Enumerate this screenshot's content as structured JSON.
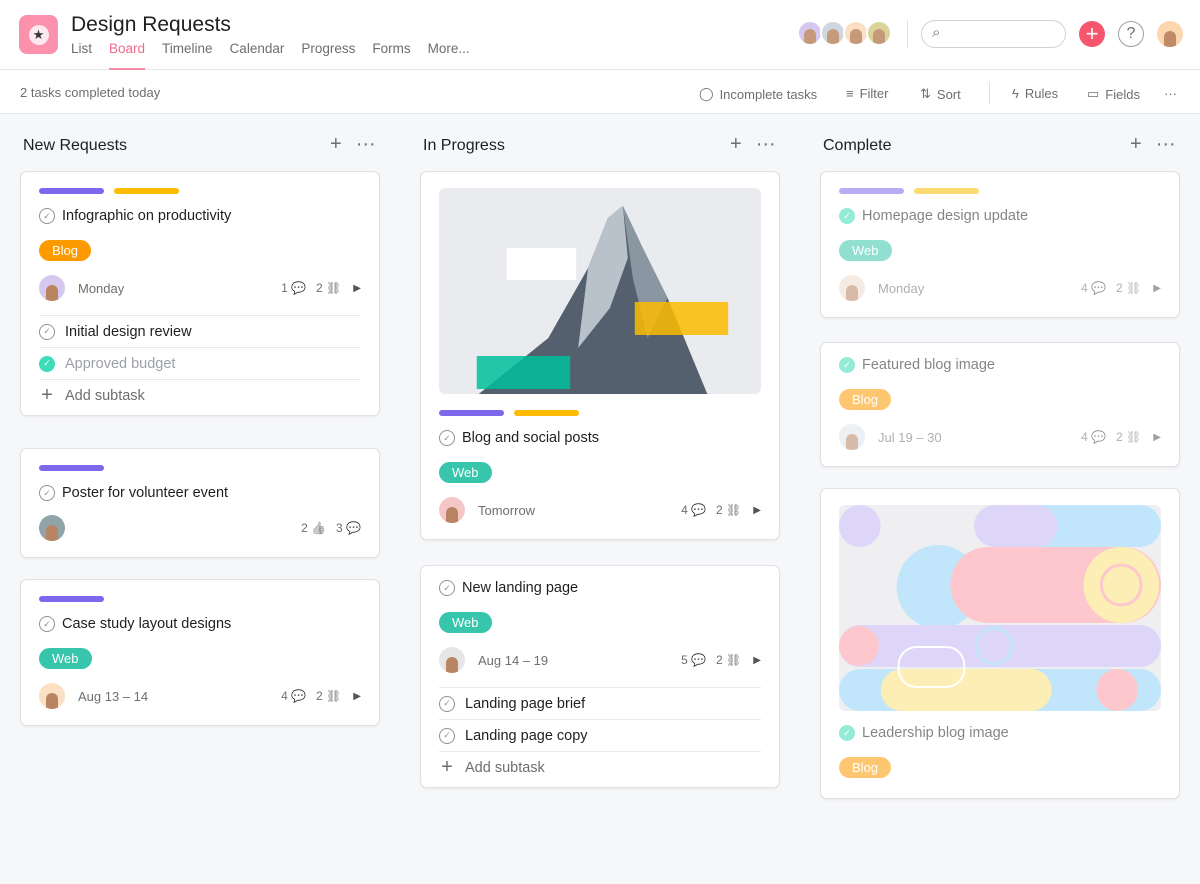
{
  "project": {
    "title": "Design Requests",
    "icon": "star-icon",
    "color": "#fc91ad"
  },
  "tabs": [
    "List",
    "Board",
    "Timeline",
    "Calendar",
    "Progress",
    "Forms",
    "More..."
  ],
  "active_tab": "Board",
  "header": {
    "members": [
      "#d7c8f0",
      "#cfd6df",
      "#fbe0c4",
      "#dcd39a"
    ],
    "help": "?",
    "add": "+"
  },
  "toolbar": {
    "status": "2 tasks completed today",
    "incomplete": "Incomplete tasks",
    "filter": "Filter",
    "sort": "Sort",
    "rules": "Rules",
    "fields": "Fields",
    "more": "···"
  },
  "colors": {
    "purple": "#7b68ee",
    "yellow": "#fdbc00",
    "blog": "#fd9a00",
    "web": "#37c5ab",
    "accent": "#f06a8c"
  },
  "columns": [
    {
      "title": "New Requests",
      "cards": [
        {
          "bars": [
            "purple",
            "yellow"
          ],
          "title": "Infographic on productivity",
          "done": false,
          "tag": "Blog",
          "avatar": "#d7c8f0",
          "date": "Monday",
          "stats": [
            "1 💬",
            "2 ⛓"
          ],
          "arrow": true,
          "subtasks": [
            {
              "label": "Initial design review",
              "done": false
            },
            {
              "label": "Approved budget",
              "done": true
            }
          ],
          "add_subtask": "Add subtask"
        },
        {
          "bars": [
            "purple"
          ],
          "title": "Poster for volunteer event",
          "done": false,
          "avatar": "#8fa3a8",
          "date": "",
          "stats": [
            "2 👍",
            "3 💬"
          ]
        },
        {
          "bars": [
            "purple"
          ],
          "title": "Case study layout designs",
          "done": false,
          "tag": "Web",
          "avatar": "#fbe0c4",
          "date": "Aug 13 – 14",
          "stats": [
            "4 💬",
            "2 ⛓"
          ],
          "arrow": true
        }
      ]
    },
    {
      "title": "In Progress",
      "cards": [
        {
          "image": "mountain",
          "bars": [
            "purple",
            "yellow"
          ],
          "title": "Blog and social posts",
          "done": false,
          "tag": "Web",
          "avatar": "#f5c6c6",
          "date": "Tomorrow",
          "stats": [
            "4 💬",
            "2 ⛓"
          ],
          "arrow": true
        },
        {
          "title": "New landing page",
          "done": false,
          "tag": "Web",
          "avatar": "#e6e6e6",
          "date": "Aug 14 – 19",
          "stats": [
            "5 💬",
            "2 ⛓"
          ],
          "arrow": true,
          "subtasks": [
            {
              "label": "Landing page brief",
              "done": false
            },
            {
              "label": "Landing page copy",
              "done": false
            }
          ],
          "add_subtask": "Add subtask"
        }
      ]
    },
    {
      "title": "Complete",
      "faded": true,
      "cards": [
        {
          "bars": [
            "purple",
            "yellow"
          ],
          "title": "Homepage design update",
          "done": true,
          "tag": "Web",
          "avatar": "#f0dccc",
          "date": "Monday",
          "stats": [
            "4 💬",
            "2 ⛓"
          ],
          "arrow": true
        },
        {
          "title": "Featured blog image",
          "done": true,
          "tag": "Blog",
          "avatar": "#dde3ea",
          "date": "Jul 19 – 30",
          "stats": [
            "4 💬",
            "2 ⛓"
          ],
          "arrow": true
        },
        {
          "image": "abstract",
          "title": "Leadership blog image",
          "done": true,
          "tag": "Blog"
        }
      ]
    }
  ]
}
